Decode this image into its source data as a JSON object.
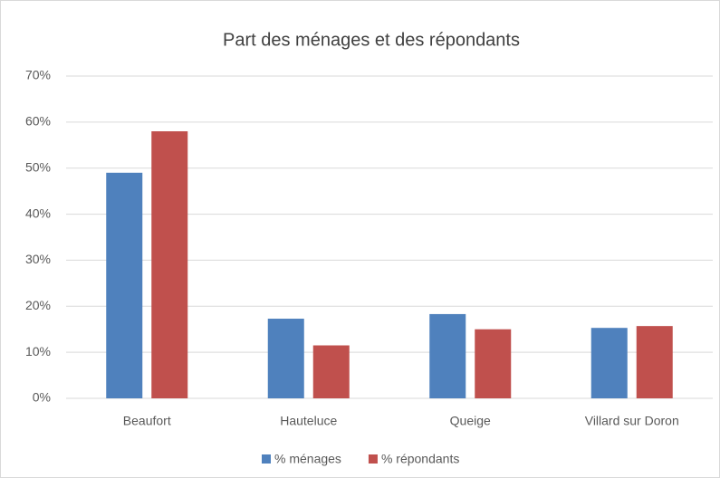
{
  "chart_data": {
    "type": "bar",
    "title": "Part des ménages et des répondants",
    "categories": [
      "Beaufort",
      "Hauteluce",
      "Queige",
      "Villard sur Doron"
    ],
    "series": [
      {
        "name": "% ménages",
        "color": "#4f81bd",
        "values": [
          49,
          17.3,
          18.3,
          15.3
        ]
      },
      {
        "name": "% répondants",
        "color": "#c0504d",
        "values": [
          58,
          11.5,
          15,
          15.7
        ]
      }
    ],
    "ylim": [
      0,
      70
    ],
    "yticks": [
      {
        "value": 0,
        "label": "0%"
      },
      {
        "value": 10,
        "label": "10%"
      },
      {
        "value": 20,
        "label": "20%"
      },
      {
        "value": 30,
        "label": "30%"
      },
      {
        "value": 40,
        "label": "40%"
      },
      {
        "value": 50,
        "label": "50%"
      },
      {
        "value": 60,
        "label": "60%"
      },
      {
        "value": 70,
        "label": "70%"
      }
    ],
    "grid": true,
    "legend": "bottom"
  }
}
